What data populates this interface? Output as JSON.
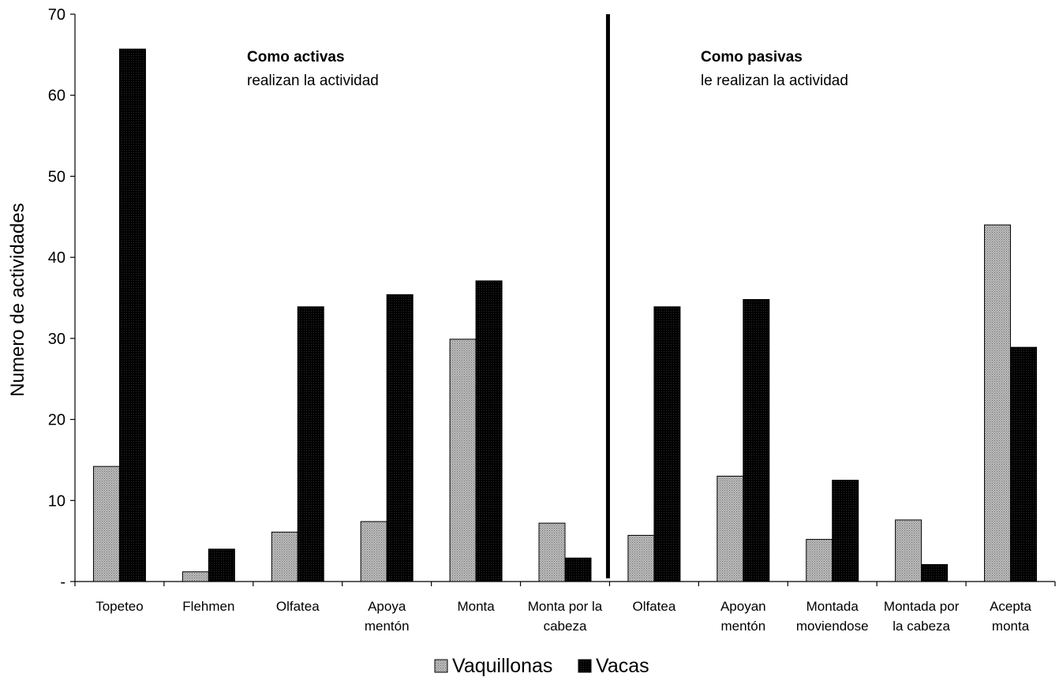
{
  "chart_data": {
    "type": "bar",
    "ylabel": "Numero de actividades",
    "ylim": [
      0,
      70
    ],
    "yticks": [
      {
        "value": 0,
        "label": "-"
      },
      {
        "value": 10,
        "label": "10"
      },
      {
        "value": 20,
        "label": "20"
      },
      {
        "value": 30,
        "label": "30"
      },
      {
        "value": 40,
        "label": "40"
      },
      {
        "value": 50,
        "label": "50"
      },
      {
        "value": 60,
        "label": "60"
      },
      {
        "value": 70,
        "label": "70"
      }
    ],
    "grid": false,
    "legend_position": "bottom",
    "categories": [
      [
        "Topeteo"
      ],
      [
        "Flehmen"
      ],
      [
        "Olfatea"
      ],
      [
        "Apoya",
        "mentón"
      ],
      [
        "Monta"
      ],
      [
        "Monta por la",
        "cabeza"
      ],
      [
        "Olfatea"
      ],
      [
        "Apoyan",
        "mentón"
      ],
      [
        "Montada",
        "moviendose"
      ],
      [
        "Montada por",
        "la cabeza"
      ],
      [
        "Acepta",
        "monta"
      ]
    ],
    "series": [
      {
        "name": "Vaquillonas",
        "color": "#a6a6a6",
        "values": [
          14.2,
          1.2,
          6.1,
          7.4,
          29.9,
          7.2,
          5.7,
          13.0,
          5.2,
          7.6,
          44.0
        ]
      },
      {
        "name": "Vacas",
        "color": "#111111",
        "values": [
          65.7,
          4.0,
          33.9,
          35.4,
          37.1,
          2.9,
          33.9,
          34.8,
          12.5,
          2.1,
          28.9
        ]
      }
    ],
    "annotations": [
      {
        "title": "Como activas",
        "subtitle": "realizan la actividad"
      },
      {
        "title": "Como pasivas",
        "subtitle": "le realizan la actividad"
      }
    ],
    "divider_after_category": 5
  }
}
